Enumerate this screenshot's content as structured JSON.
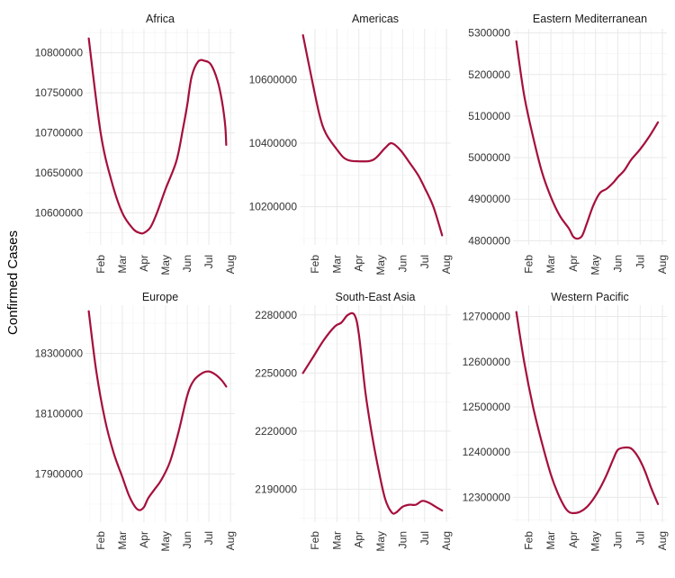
{
  "figure": {
    "ylabel": "Confirmed Cases",
    "line_color": "#A50F3C"
  },
  "chart_data": [
    {
      "type": "line",
      "title": "Africa",
      "xlabel": "",
      "ylabel": "Confirmed Cases",
      "x_tick_labels": [
        "Feb",
        "Mar",
        "Apr",
        "May",
        "Jun",
        "Jul",
        "Aug"
      ],
      "x_domain": [
        0.3,
        7.2
      ],
      "ylim": [
        10560000,
        10830000
      ],
      "y_ticks": [
        10600000,
        10650000,
        10700000,
        10750000,
        10800000
      ],
      "y_tick_labels": [
        "10600000",
        "10650000",
        "10700000",
        "10750000",
        "10800000"
      ],
      "grid": true,
      "series": [
        {
          "x": [
            0.45,
            1.0,
            1.5,
            2.0,
            2.5,
            2.8,
            3.0,
            3.3,
            3.6,
            4.0,
            4.5,
            4.8,
            5.0,
            5.2,
            5.5,
            5.8,
            6.1,
            6.4,
            6.6,
            6.75,
            6.8
          ],
          "y": [
            10818000,
            10700000,
            10640000,
            10600000,
            10580000,
            10575000,
            10575000,
            10582000,
            10600000,
            10630000,
            10665000,
            10705000,
            10735000,
            10770000,
            10789000,
            10790000,
            10785000,
            10765000,
            10740000,
            10710000,
            10685000
          ]
        }
      ]
    },
    {
      "type": "line",
      "title": "Americas",
      "xlabel": "",
      "ylabel": "Confirmed Cases",
      "x_tick_labels": [
        "Feb",
        "Mar",
        "Apr",
        "May",
        "Jun",
        "Jul",
        "Aug"
      ],
      "x_domain": [
        0.3,
        7.2
      ],
      "ylim": [
        10080000,
        10760000
      ],
      "y_ticks": [
        10200000,
        10400000,
        10600000
      ],
      "y_tick_labels": [
        "10200000",
        "10400000",
        "10600000"
      ],
      "grid": true,
      "series": [
        {
          "x": [
            0.45,
            0.8,
            1.2,
            1.5,
            2.0,
            2.3,
            2.6,
            3.0,
            3.5,
            3.8,
            4.2,
            4.5,
            4.9,
            5.3,
            5.7,
            6.0,
            6.4,
            6.8
          ],
          "y": [
            10740000,
            10620000,
            10490000,
            10430000,
            10380000,
            10355000,
            10345000,
            10343000,
            10344000,
            10355000,
            10385000,
            10400000,
            10378000,
            10340000,
            10300000,
            10260000,
            10200000,
            10110000
          ]
        }
      ]
    },
    {
      "type": "line",
      "title": "Eastern Mediterranean",
      "xlabel": "",
      "ylabel": "Confirmed Cases",
      "x_tick_labels": [
        "Feb",
        "Mar",
        "Apr",
        "May",
        "Jun",
        "Jul",
        "Aug"
      ],
      "x_domain": [
        0.3,
        7.2
      ],
      "ylim": [
        4790000,
        5310000
      ],
      "y_ticks": [
        4800000,
        4900000,
        5000000,
        5100000,
        5200000,
        5300000
      ],
      "y_tick_labels": [
        "4800000",
        "4900000",
        "5000000",
        "5100000",
        "5200000",
        "5300000"
      ],
      "grid": true,
      "series": [
        {
          "x": [
            0.45,
            0.8,
            1.2,
            1.6,
            2.0,
            2.4,
            2.8,
            3.0,
            3.2,
            3.4,
            3.6,
            3.9,
            4.2,
            4.5,
            4.8,
            5.0,
            5.3,
            5.6,
            6.0,
            6.4,
            6.8
          ],
          "y": [
            5280000,
            5150000,
            5050000,
            4965000,
            4905000,
            4860000,
            4830000,
            4810000,
            4805000,
            4812000,
            4840000,
            4885000,
            4915000,
            4925000,
            4940000,
            4953000,
            4970000,
            4995000,
            5020000,
            5050000,
            5085000
          ]
        }
      ]
    },
    {
      "type": "line",
      "title": "Europe",
      "xlabel": "",
      "ylabel": "Confirmed Cases",
      "x_tick_labels": [
        "Feb",
        "Mar",
        "Apr",
        "May",
        "Jun",
        "Jul",
        "Aug"
      ],
      "x_domain": [
        0.3,
        7.2
      ],
      "ylim": [
        17740000,
        18460000
      ],
      "y_ticks": [
        17900000,
        18100000,
        18300000
      ],
      "y_tick_labels": [
        "17900000",
        "18100000",
        "18300000"
      ],
      "grid": true,
      "series": [
        {
          "x": [
            0.45,
            0.8,
            1.2,
            1.6,
            2.0,
            2.3,
            2.6,
            2.8,
            3.0,
            3.2,
            3.5,
            3.8,
            4.2,
            4.6,
            5.0,
            5.3,
            5.7,
            6.0,
            6.3,
            6.6,
            6.8
          ],
          "y": [
            18440000,
            18240000,
            18080000,
            17970000,
            17890000,
            17830000,
            17790000,
            17780000,
            17790000,
            17820000,
            17850000,
            17880000,
            17940000,
            18040000,
            18160000,
            18210000,
            18235000,
            18240000,
            18230000,
            18210000,
            18190000
          ]
        }
      ]
    },
    {
      "type": "line",
      "title": "South-East Asia",
      "xlabel": "",
      "ylabel": "Confirmed Cases",
      "x_tick_labels": [
        "Feb",
        "Mar",
        "Apr",
        "May",
        "Jun",
        "Jul",
        "Aug"
      ],
      "x_domain": [
        0.3,
        7.2
      ],
      "ylim": [
        2173000,
        2285000
      ],
      "y_ticks": [
        2190000,
        2220000,
        2250000,
        2280000
      ],
      "y_tick_labels": [
        "2190000",
        "2220000",
        "2250000",
        "2280000"
      ],
      "grid": true,
      "series": [
        {
          "x": [
            0.45,
            0.9,
            1.4,
            1.9,
            2.2,
            2.5,
            2.8,
            3.0,
            3.3,
            3.6,
            3.9,
            4.2,
            4.5,
            4.7,
            5.0,
            5.3,
            5.6,
            5.9,
            6.2,
            6.5,
            6.8
          ],
          "y": [
            2250000,
            2258000,
            2267000,
            2274000,
            2276000,
            2280000,
            2280000,
            2270000,
            2240000,
            2218000,
            2200000,
            2185000,
            2178000,
            2178000,
            2181000,
            2182000,
            2182000,
            2184000,
            2183000,
            2181000,
            2179000
          ]
        }
      ]
    },
    {
      "type": "line",
      "title": "Western Pacific",
      "xlabel": "",
      "ylabel": "Confirmed Cases",
      "x_tick_labels": [
        "Feb",
        "Mar",
        "Apr",
        "May",
        "Jun",
        "Jul",
        "Aug"
      ],
      "x_domain": [
        0.3,
        7.2
      ],
      "ylim": [
        12245000,
        12725000
      ],
      "y_ticks": [
        12300000,
        12400000,
        12500000,
        12600000,
        12700000
      ],
      "y_tick_labels": [
        "12300000",
        "12400000",
        "12500000",
        "12600000",
        "12700000"
      ],
      "grid": true,
      "series": [
        {
          "x": [
            0.45,
            0.8,
            1.2,
            1.6,
            2.0,
            2.3,
            2.6,
            2.8,
            3.0,
            3.3,
            3.6,
            3.9,
            4.2,
            4.5,
            4.8,
            5.0,
            5.3,
            5.6,
            5.9,
            6.2,
            6.5,
            6.8
          ],
          "y": [
            12710000,
            12600000,
            12500000,
            12420000,
            12350000,
            12310000,
            12280000,
            12268000,
            12265000,
            12268000,
            12278000,
            12296000,
            12320000,
            12350000,
            12385000,
            12405000,
            12410000,
            12408000,
            12390000,
            12360000,
            12320000,
            12285000
          ]
        }
      ]
    }
  ]
}
